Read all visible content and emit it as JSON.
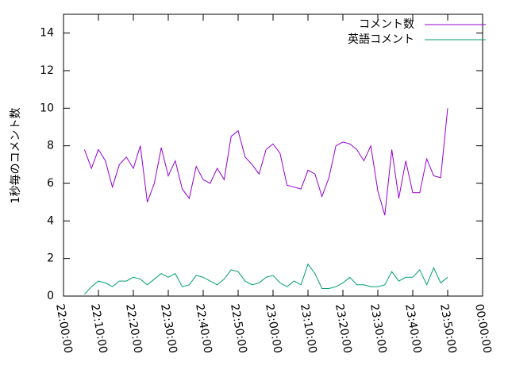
{
  "chart_data": {
    "type": "line",
    "ylabel": "1秒毎のコメント数",
    "x": [
      "22:06:00",
      "22:08:00",
      "22:10:00",
      "22:12:00",
      "22:14:00",
      "22:16:00",
      "22:18:00",
      "22:20:00",
      "22:22:00",
      "22:24:00",
      "22:26:00",
      "22:28:00",
      "22:30:00",
      "22:32:00",
      "22:34:00",
      "22:36:00",
      "22:38:00",
      "22:40:00",
      "22:42:00",
      "22:44:00",
      "22:46:00",
      "22:48:00",
      "22:50:00",
      "22:52:00",
      "22:54:00",
      "22:56:00",
      "22:58:00",
      "23:00:00",
      "23:02:00",
      "23:04:00",
      "23:06:00",
      "23:08:00",
      "23:10:00",
      "23:12:00",
      "23:14:00",
      "23:16:00",
      "23:18:00",
      "23:20:00",
      "23:22:00",
      "23:24:00",
      "23:26:00",
      "23:28:00",
      "23:30:00",
      "23:32:00",
      "23:34:00",
      "23:36:00",
      "23:38:00",
      "23:40:00",
      "23:42:00",
      "23:44:00",
      "23:46:00",
      "23:48:00",
      "23:50:00"
    ],
    "series": [
      {
        "name": "コメント数",
        "color": "#9400d3",
        "values": [
          7.8,
          6.8,
          7.8,
          7.2,
          5.8,
          7.0,
          7.4,
          6.8,
          8.0,
          5.0,
          6.0,
          7.9,
          6.4,
          7.2,
          5.7,
          5.2,
          6.9,
          6.2,
          6.0,
          6.8,
          6.2,
          8.5,
          8.8,
          7.4,
          7.0,
          6.5,
          7.8,
          8.1,
          7.6,
          5.9,
          5.8,
          5.7,
          6.7,
          6.5,
          5.3,
          6.3,
          8.0,
          8.2,
          8.1,
          7.8,
          7.2,
          8.0,
          5.6,
          4.3,
          7.8,
          5.2,
          7.2,
          5.5,
          5.5,
          7.3,
          6.4,
          6.3,
          10.0
        ]
      },
      {
        "name": "英語コメント",
        "color": "#009e73",
        "values": [
          0.1,
          0.5,
          0.8,
          0.7,
          0.5,
          0.8,
          0.8,
          1.0,
          0.9,
          0.6,
          0.9,
          1.2,
          1.0,
          1.2,
          0.5,
          0.6,
          1.1,
          1.0,
          0.8,
          0.6,
          0.9,
          1.4,
          1.3,
          0.8,
          0.6,
          0.7,
          1.0,
          1.1,
          0.7,
          0.5,
          0.8,
          0.6,
          1.7,
          1.2,
          0.4,
          0.4,
          0.5,
          0.7,
          1.0,
          0.6,
          0.6,
          0.5,
          0.5,
          0.6,
          1.3,
          0.8,
          1.0,
          1.0,
          1.4,
          0.6,
          1.5,
          0.7,
          1.0
        ]
      }
    ],
    "xlim": [
      "22:00:00",
      "00:00:00"
    ],
    "xticks": [
      "22:00:00",
      "22:10:00",
      "22:20:00",
      "22:30:00",
      "22:40:00",
      "22:50:00",
      "23:00:00",
      "23:10:00",
      "23:20:00",
      "23:30:00",
      "23:40:00",
      "23:50:00",
      "00:00:00"
    ],
    "ylim": [
      0,
      15
    ],
    "yticks": [
      0,
      2,
      4,
      6,
      8,
      10,
      12,
      14
    ],
    "legend": "top-right"
  }
}
